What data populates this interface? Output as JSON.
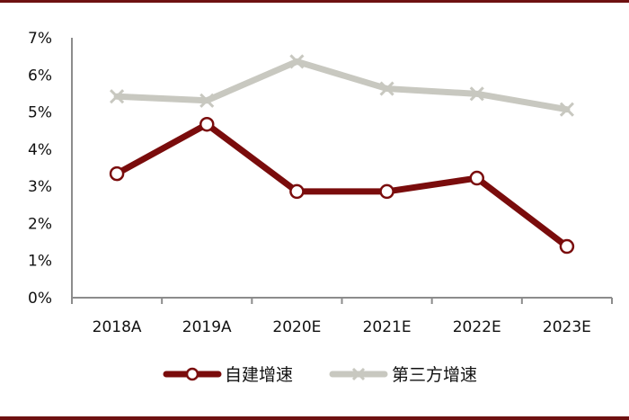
{
  "chart_data": {
    "type": "line",
    "title": "",
    "xlabel": "",
    "ylabel": "",
    "categories": [
      "2018A",
      "2019A",
      "2020E",
      "2021E",
      "2022E",
      "2023E"
    ],
    "series": [
      {
        "name": "自建增速",
        "color": "#7a0c0c",
        "marker": "circle",
        "values": [
          3.34,
          4.67,
          2.86,
          2.86,
          3.22,
          1.38
        ]
      },
      {
        "name": "第三方增速",
        "color": "#c8c8c0",
        "marker": "x",
        "values": [
          5.42,
          5.31,
          6.36,
          5.63,
          5.49,
          5.07
        ]
      }
    ],
    "ylim": [
      0,
      7
    ],
    "yticks": [
      0,
      1,
      2,
      3,
      4,
      5,
      6,
      7
    ],
    "ytick_labels": [
      "0%",
      "1%",
      "2%",
      "3%",
      "4%",
      "5%",
      "6%",
      "7%"
    ],
    "grid": false,
    "legend_position": "bottom"
  },
  "colors": {
    "frame": "#6e1111",
    "axis": "#8c8c8c"
  }
}
